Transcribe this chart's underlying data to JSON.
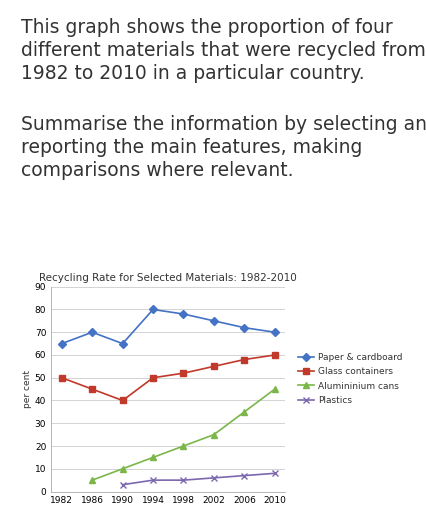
{
  "title": "Recycling Rate for Selected Materials: 1982-2010",
  "ylabel": "per cent",
  "years": [
    1982,
    1986,
    1990,
    1994,
    1998,
    2002,
    2006,
    2010
  ],
  "series": {
    "Paper & cardboard": {
      "values": [
        65,
        70,
        65,
        80,
        78,
        75,
        72,
        70
      ],
      "color": "#4472C4",
      "marker": "D",
      "markersize": 4
    },
    "Glass containers": {
      "values": [
        50,
        45,
        40,
        50,
        52,
        55,
        58,
        60
      ],
      "color": "#C0392B",
      "marker": "s",
      "markersize": 4
    },
    "Alumininium cans": {
      "values": [
        null,
        5,
        10,
        15,
        20,
        25,
        35,
        45
      ],
      "color": "#7AB648",
      "marker": "^",
      "markersize": 4
    },
    "Plastics": {
      "values": [
        null,
        null,
        3,
        5,
        5,
        6,
        7,
        8
      ],
      "color": "#7B68AE",
      "marker": "x",
      "markersize": 4
    }
  },
  "ylim": [
    0,
    90
  ],
  "yticks": [
    0,
    10,
    20,
    30,
    40,
    50,
    60,
    70,
    80,
    90
  ],
  "text_para1_line1": "This graph shows the proportion of four",
  "text_para1_line2": "different materials that were recycled from",
  "text_para1_line3": "1982 to 2010 in a particular country.",
  "text_para2_line1": "Summarise the information by selecting and",
  "text_para2_line2": "reporting the main features, making",
  "text_para2_line3": "comparisons where relevant.",
  "background_color": "#ffffff",
  "text_color": "#333333",
  "text_fontsize": 13.5,
  "title_fontsize": 7.5,
  "axis_fontsize": 6.5,
  "legend_fontsize": 6.5
}
